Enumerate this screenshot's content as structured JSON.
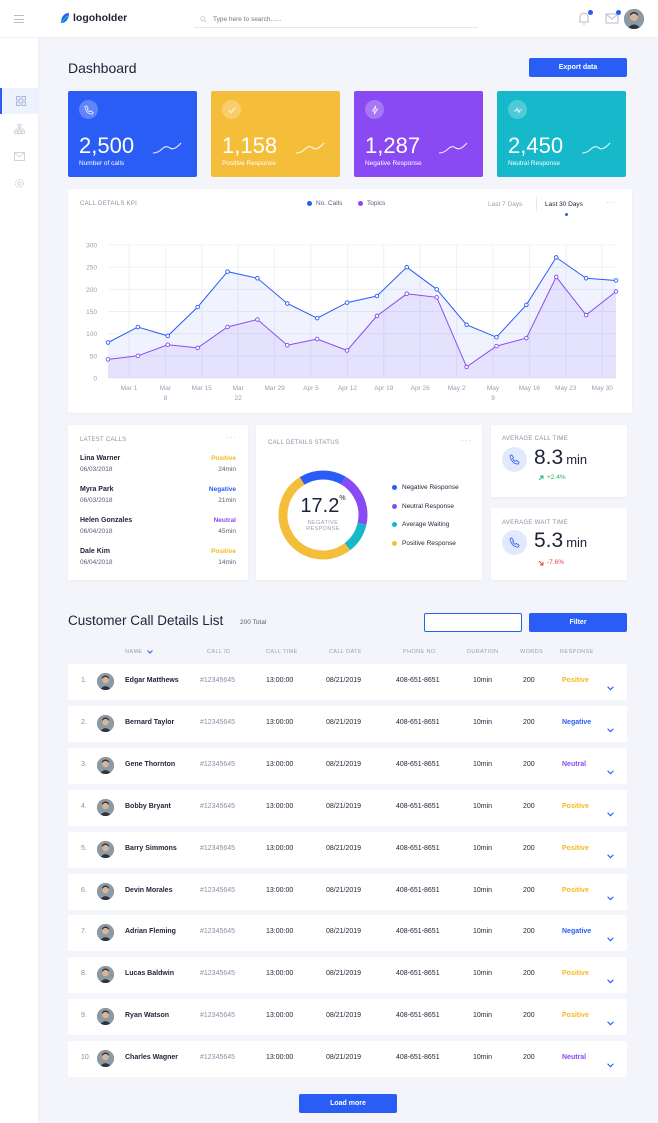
{
  "topbar": {
    "logo_text": "logoholder",
    "search_placeholder": "Type here to search......"
  },
  "colors": {
    "blue": "#2a5cf6",
    "yellow": "#f5be3a",
    "purple": "#8a4af3",
    "teal": "#16b9c9",
    "negative_text": "#2a5cf6",
    "neutral_text": "#8a4af3",
    "positive_text": "#f5b91e"
  },
  "dashboard": {
    "title": "Dashboard",
    "export_label": "Export data"
  },
  "stats": [
    {
      "icon": "phone-icon",
      "value": "2,500",
      "label": "Number of calls",
      "color": "#2a5cf6"
    },
    {
      "icon": "check-icon",
      "value": "1,158",
      "label": "Positive Response",
      "color": "#f5be3a"
    },
    {
      "icon": "lightning-icon",
      "value": "1,287",
      "label": "Negative Response",
      "color": "#8a4af3"
    },
    {
      "icon": "activity-icon",
      "value": "2,450",
      "label": "Neutral Response",
      "color": "#16b9c9"
    }
  ],
  "kpi": {
    "caption": "CALL DETAILS KPI",
    "legend_calls": "No. Calls",
    "legend_topics": "Topics",
    "range_7": "Last 7 Days",
    "range_30": "Last 30 Days",
    "more": "···"
  },
  "chart_data": {
    "type": "line",
    "title": "CALL DETAILS KPI",
    "ylim": [
      0,
      300
    ],
    "yticks": [
      0,
      50,
      100,
      150,
      200,
      250,
      300
    ],
    "xtick_labels": [
      [
        "Mar 1",
        ""
      ],
      [
        "Mar",
        "8"
      ],
      [
        "Mar 15",
        ""
      ],
      [
        "Mar",
        "22"
      ],
      [
        "Mar 29",
        ""
      ],
      [
        "Apr 5",
        ""
      ],
      [
        "Apr 12",
        ""
      ],
      [
        "Apr 19",
        ""
      ],
      [
        "Apr 26",
        ""
      ],
      [
        "May 2",
        ""
      ],
      [
        "May",
        "9"
      ],
      [
        "May 16",
        ""
      ],
      [
        "May 23",
        ""
      ],
      [
        "May 30",
        ""
      ]
    ],
    "grid": true,
    "legend_position": "top",
    "series": [
      {
        "name": "No. Calls",
        "color": "#2a5cf6",
        "values": [
          80,
          115,
          95,
          160,
          240,
          225,
          168,
          135,
          170,
          185,
          250,
          200,
          120,
          92,
          165,
          272,
          225,
          220
        ]
      },
      {
        "name": "Topics",
        "color": "#8a4af3",
        "values": [
          42,
          50,
          75,
          68,
          115,
          132,
          74,
          88,
          62,
          140,
          190,
          182,
          25,
          72,
          90,
          228,
          142,
          195
        ]
      }
    ]
  },
  "latest_calls": {
    "caption": "LATEST CALLS",
    "more": "···",
    "items": [
      {
        "name": "Lina Warner",
        "date": "06/03/2018",
        "status": "Positive",
        "status_color": "#f5b91e",
        "duration": "24min"
      },
      {
        "name": "Myra Park",
        "date": "06/03/2018",
        "status": "Negative",
        "status_color": "#2a5cf6",
        "duration": "21min"
      },
      {
        "name": "Helen Gonzales",
        "date": "06/04/2018",
        "status": "Neutral",
        "status_color": "#8a4af3",
        "duration": "45min"
      },
      {
        "name": "Dale Kim",
        "date": "06/04/2018",
        "status": "Positive",
        "status_color": "#f5b91e",
        "duration": "14min"
      }
    ]
  },
  "status": {
    "caption": "CALL DETAILS STATUS",
    "more": "···",
    "value": "17.2",
    "unit": "%",
    "sub1": "NEGATIVE",
    "sub2": "RESPONSE",
    "segments": [
      {
        "label": "Negative Response",
        "color": "#2a5cf6",
        "fraction": 0.172
      },
      {
        "label": "Neutral Response",
        "color": "#8a4af3",
        "fraction": 0.2
      },
      {
        "label": "Average Waiting",
        "color": "#16b9c9",
        "fraction": 0.11
      },
      {
        "label": "Positive Response",
        "color": "#f5be3a",
        "fraction": 0.518
      }
    ]
  },
  "avg_call": {
    "caption": "AVERAGE CALL TIME",
    "value": "8.3",
    "unit": "min",
    "change": "+2.4%",
    "change_color": "#2ab062"
  },
  "avg_wait": {
    "caption": "AVERAGE WAIT TIME",
    "value": "5.3",
    "unit": "min",
    "change": "-7.6%",
    "change_color": "#ef3b3b"
  },
  "list": {
    "title": "Customer Call Details List",
    "total": "200 Total",
    "filter_label": "Filter",
    "headers": {
      "name": "NAME",
      "call_id": "CALL ID",
      "call_time": "CALL TIME",
      "call_date": "CALL DATE",
      "phone": "PHONE NO.",
      "duration": "DURATION",
      "words": "WORDS",
      "response": "RESPONSE"
    },
    "rows": [
      {
        "num": "1.",
        "name": "Edgar Matthews",
        "id": "#12345645",
        "time": "13:00:00",
        "date": "08/21/2019",
        "phone": "408-651-8651",
        "duration": "10min",
        "words": "200",
        "response": "Positive",
        "response_color": "#f5b91e"
      },
      {
        "num": "2.",
        "name": "Bernard Taylor",
        "id": "#12345645",
        "time": "13:00:00",
        "date": "08/21/2019",
        "phone": "408-651-8651",
        "duration": "10min",
        "words": "200",
        "response": "Negative",
        "response_color": "#2a5cf6"
      },
      {
        "num": "3.",
        "name": "Gene Thornton",
        "id": "#12345645",
        "time": "13:00:00",
        "date": "08/21/2019",
        "phone": "408-651-8651",
        "duration": "10min",
        "words": "200",
        "response": "Neutral",
        "response_color": "#8a4af3"
      },
      {
        "num": "4.",
        "name": "Bobby Bryant",
        "id": "#12345645",
        "time": "13:00:00",
        "date": "08/21/2019",
        "phone": "408-651-8651",
        "duration": "10min",
        "words": "200",
        "response": "Positive",
        "response_color": "#f5b91e"
      },
      {
        "num": "5.",
        "name": "Barry Simmons",
        "id": "#12345645",
        "time": "13:00:00",
        "date": "08/21/2019",
        "phone": "408-651-8651",
        "duration": "10min",
        "words": "200",
        "response": "Positive",
        "response_color": "#f5b91e"
      },
      {
        "num": "6.",
        "name": "Devin Morales",
        "id": "#12345645",
        "time": "13:00:00",
        "date": "08/21/2019",
        "phone": "408-651-8651",
        "duration": "10min",
        "words": "200",
        "response": "Positive",
        "response_color": "#f5b91e"
      },
      {
        "num": "7.",
        "name": "Adrian Fleming",
        "id": "#12345645",
        "time": "13:00:00",
        "date": "08/21/2019",
        "phone": "408-651-8651",
        "duration": "10min",
        "words": "200",
        "response": "Negative",
        "response_color": "#2a5cf6"
      },
      {
        "num": "8.",
        "name": "Lucas Baldwin",
        "id": "#12345645",
        "time": "13:00:00",
        "date": "08/21/2019",
        "phone": "408-651-8651",
        "duration": "10min",
        "words": "200",
        "response": "Positive",
        "response_color": "#f5b91e"
      },
      {
        "num": "9.",
        "name": "Ryan Watson",
        "id": "#12345645",
        "time": "13:00:00",
        "date": "08/21/2019",
        "phone": "408-651-8651",
        "duration": "10min",
        "words": "200",
        "response": "Positive",
        "response_color": "#f5b91e"
      },
      {
        "num": "10.",
        "name": "Charles Wagner",
        "id": "#12345645",
        "time": "13:00:00",
        "date": "08/21/2019",
        "phone": "408-651-8651",
        "duration": "10min",
        "words": "200",
        "response": "Neutral",
        "response_color": "#8a4af3"
      }
    ],
    "load_more": "Load more"
  }
}
